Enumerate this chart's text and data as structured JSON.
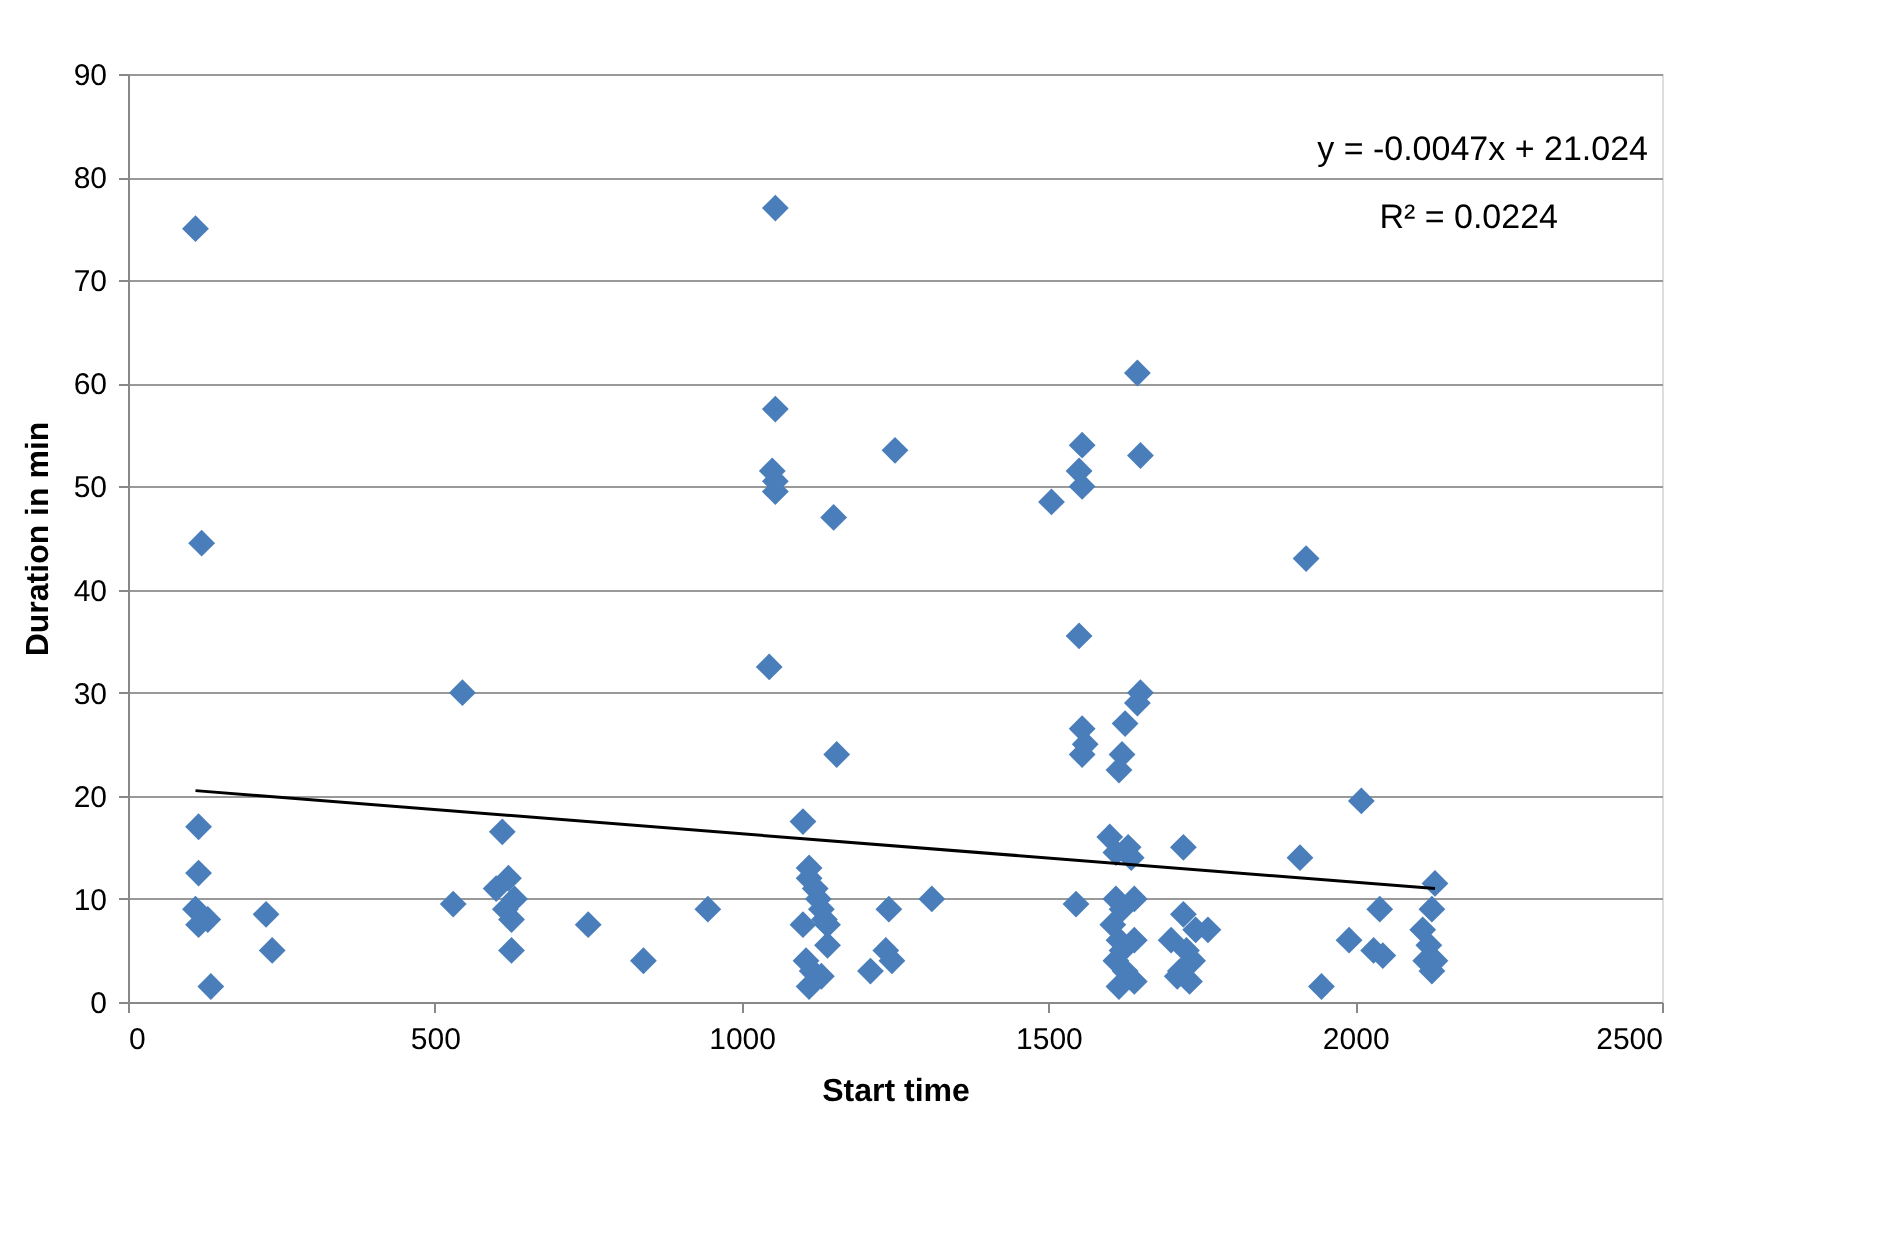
{
  "chart_data": {
    "type": "scatter",
    "xlabel": "Start time",
    "ylabel": "Duration in min",
    "xlim": [
      0,
      2500
    ],
    "xticks": [
      0,
      500,
      1000,
      1500,
      2000,
      2500
    ],
    "ylim": [
      0,
      90
    ],
    "yticks": [
      0,
      10,
      20,
      30,
      40,
      50,
      60,
      70,
      80,
      90
    ],
    "grid": "y",
    "legend": false,
    "annotations": [
      "y = -0.0047x + 21.024",
      "R² = 0.0224"
    ],
    "series": [
      {
        "marker": "diamond",
        "color": "#4a7ebb",
        "x": [
          110,
          120,
          115,
          115,
          110,
          115,
          130,
          135,
          225,
          235,
          545,
          530,
          610,
          600,
          620,
          615,
          630,
          625,
          625,
          750,
          840,
          945,
          1055,
          1055,
          1050,
          1055,
          1055,
          1045,
          1150,
          1155,
          1100,
          1110,
          1110,
          1120,
          1125,
          1130,
          1135,
          1140,
          1100,
          1105,
          1115,
          1110,
          1130,
          1140,
          1250,
          1240,
          1210,
          1235,
          1245,
          1310,
          1505,
          1550,
          1555,
          1555,
          1550,
          1555,
          1560,
          1555,
          1615,
          1620,
          1625,
          1645,
          1650,
          1645,
          1650,
          1545,
          1600,
          1610,
          1630,
          1635,
          1610,
          1620,
          1605,
          1615,
          1620,
          1610,
          1625,
          1615,
          1640,
          1640,
          1640,
          1700,
          1720,
          1720,
          1740,
          1725,
          1735,
          1715,
          1730,
          1710,
          1760,
          1920,
          1910,
          2010,
          1945,
          1990,
          2040,
          2030,
          2045,
          2110,
          2130,
          2125,
          2120,
          2130,
          2125,
          2115
        ],
        "values": [
          75,
          44.5,
          17,
          12.5,
          9,
          7.5,
          8,
          1.5,
          8.5,
          5,
          30,
          9.5,
          16.5,
          11,
          12,
          9,
          10,
          8,
          5,
          7.5,
          4,
          9,
          77,
          57.5,
          51.5,
          50.5,
          49.5,
          32.5,
          47,
          24,
          17.5,
          13,
          12,
          11,
          10,
          9,
          8,
          7.5,
          7.5,
          4,
          3,
          1.5,
          2.5,
          5.5,
          53.5,
          9,
          3,
          5,
          4,
          10,
          48.5,
          51.5,
          54,
          50,
          35.5,
          26.5,
          25,
          24,
          22.5,
          24,
          27,
          29,
          30,
          61,
          53,
          9.5,
          16,
          14.5,
          15,
          14,
          10,
          9,
          7.5,
          6,
          5,
          4,
          3,
          1.5,
          2,
          10,
          6,
          6,
          15,
          8.5,
          7,
          5,
          4,
          3,
          2,
          2.5,
          7,
          43,
          14,
          19.5,
          1.5,
          6,
          9,
          5,
          4.5,
          7,
          11.5,
          9,
          5.5,
          4,
          3,
          4
        ]
      },
      {
        "type": "line",
        "marker": "none",
        "line_style": "solid",
        "color": "#000000",
        "x": [
          110,
          2130
        ],
        "values": [
          20.5,
          11.0
        ]
      }
    ]
  }
}
